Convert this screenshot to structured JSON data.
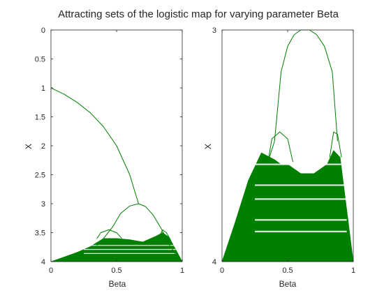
{
  "figure_title": "Attracting sets of the logistic map for varying parameter Beta",
  "colors": {
    "data": "#007f00",
    "axis": "#262626",
    "background": "#ffffff"
  },
  "chart_data": [
    {
      "type": "scatter",
      "title": "",
      "xlabel": "Beta",
      "ylabel": "X",
      "xlim": [
        0,
        1
      ],
      "ylim": [
        0,
        4
      ],
      "y_reversed": true,
      "xticks": [
        0,
        0.5,
        1
      ],
      "xtick_labels": [
        "0",
        "0.5",
        "1"
      ],
      "yticks": [
        0,
        0.5,
        1,
        1.5,
        2,
        2.5,
        3,
        3.5,
        4
      ],
      "ytick_labels": [
        "0",
        "0.5",
        "1",
        "1.5",
        "2",
        "2.5",
        "3",
        "3.5",
        "4"
      ],
      "grid": false,
      "curves": [
        {
          "x": [
            0,
            0.1,
            0.2,
            0.3,
            0.4,
            0.5,
            0.6,
            0.667
          ],
          "y": [
            1,
            1.11,
            1.25,
            1.43,
            1.67,
            2.0,
            2.5,
            3.0
          ]
        },
        {
          "x": [
            0.667,
            0.72,
            0.78,
            0.84,
            0.9,
            0.95,
            1.0
          ],
          "y": [
            3.0,
            3.05,
            3.2,
            3.43,
            3.7,
            3.88,
            4.0
          ]
        },
        {
          "x": [
            0.667,
            0.6,
            0.53,
            0.47,
            0.4,
            0.35
          ],
          "y": [
            3.0,
            3.04,
            3.17,
            3.4,
            3.6,
            3.72
          ]
        },
        {
          "x": [
            0.35,
            0.38,
            0.44,
            0.5,
            0.54
          ],
          "y": [
            3.6,
            3.5,
            3.45,
            3.5,
            3.6
          ]
        },
        {
          "x": [
            0.82,
            0.85,
            0.88,
            0.91
          ],
          "y": [
            3.6,
            3.45,
            3.5,
            3.62
          ]
        }
      ],
      "chaotic_band": {
        "x": [
          0,
          0.1,
          0.2,
          0.3,
          0.4,
          0.5,
          0.6,
          0.7,
          0.8,
          0.85,
          0.9,
          1.0
        ],
        "y_top": [
          4.0,
          3.92,
          3.84,
          3.74,
          3.6,
          3.6,
          3.62,
          3.66,
          3.56,
          3.5,
          3.58,
          4.0
        ],
        "y_bottom": [
          4,
          4,
          4,
          4,
          4,
          4,
          4,
          4,
          4,
          4,
          4,
          4
        ]
      }
    },
    {
      "type": "scatter",
      "title": "",
      "xlabel": "Beta",
      "ylabel": "X",
      "xlim": [
        0,
        1
      ],
      "ylim": [
        3,
        4
      ],
      "y_reversed": true,
      "xticks": [
        0,
        0.5,
        1
      ],
      "xtick_labels": [
        "0",
        "0.5",
        "1"
      ],
      "yticks": [
        3,
        4
      ],
      "ytick_labels": [
        "3",
        "4"
      ],
      "grid": false,
      "curves": [
        {
          "x": [
            0.35,
            0.4,
            0.45,
            0.5,
            0.55,
            0.6,
            0.667,
            0.72,
            0.78,
            0.84,
            0.88
          ],
          "y": [
            3.57,
            3.48,
            3.18,
            3.07,
            3.02,
            3.0,
            3.0,
            3.02,
            3.07,
            3.18,
            3.48
          ]
        },
        {
          "x": [
            0.35,
            0.38,
            0.44,
            0.5,
            0.54
          ],
          "y": [
            3.57,
            3.47,
            3.44,
            3.47,
            3.57
          ]
        },
        {
          "x": [
            0.82,
            0.85,
            0.88,
            0.91
          ],
          "y": [
            3.55,
            3.44,
            3.45,
            3.55
          ]
        }
      ],
      "chaotic_band": {
        "x": [
          0,
          0.1,
          0.2,
          0.3,
          0.4,
          0.45,
          0.5,
          0.6,
          0.7,
          0.8,
          0.85,
          0.9,
          1.0
        ],
        "y_top": [
          4.0,
          3.83,
          3.65,
          3.53,
          3.56,
          3.58,
          3.58,
          3.62,
          3.62,
          3.58,
          3.52,
          3.55,
          4.0
        ],
        "y_bottom": [
          4,
          4,
          4,
          4,
          4,
          4,
          4,
          4,
          4,
          4,
          4,
          4,
          4
        ]
      }
    }
  ]
}
